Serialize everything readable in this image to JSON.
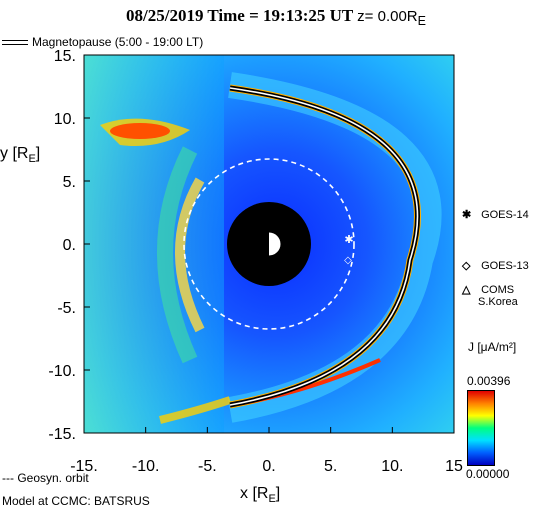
{
  "header": {
    "title": "08/25/2019 Time = 19:13:25 UT",
    "z_label": "z= 0.00R",
    "z_sub": "E"
  },
  "legend": {
    "magnetopause": "Magnetopause (5:00 - 19:00 LT)",
    "geosyn": "--- Geosyn. orbit"
  },
  "footer": "Model at CCMC: BATSRUS",
  "satellites": [
    {
      "marker": "✱",
      "label": "GOES-14"
    },
    {
      "marker": "◇",
      "label": "GOES-13"
    },
    {
      "marker": "△",
      "label": "COMS",
      "label2": "S.Korea"
    }
  ],
  "colorbar": {
    "title": "J [μA/m²]",
    "max": "0.00396",
    "min": "0.00000"
  },
  "chart_data": {
    "type": "heatmap",
    "xlabel": "x [R",
    "xlabel_sub": "E",
    "ylabel": "y [R",
    "ylabel_sub": "E",
    "xlim": [
      -15,
      15
    ],
    "ylim": [
      -15,
      15
    ],
    "xticks": [
      "-15.",
      "-10.",
      "-5.",
      "0.",
      "5.",
      "10.",
      "15"
    ],
    "yticks": [
      "15.",
      "10.",
      "5.",
      "0.",
      "-5.",
      "-10.",
      "-15."
    ],
    "geosyn_radius": 6.6,
    "magnetopause_standoff": 12.5,
    "satellite_positions": [
      {
        "name": "GOES-14",
        "x": 6.4,
        "y": 0.4
      },
      {
        "name": "GOES-13",
        "x": 6.3,
        "y": -1.2
      }
    ]
  }
}
